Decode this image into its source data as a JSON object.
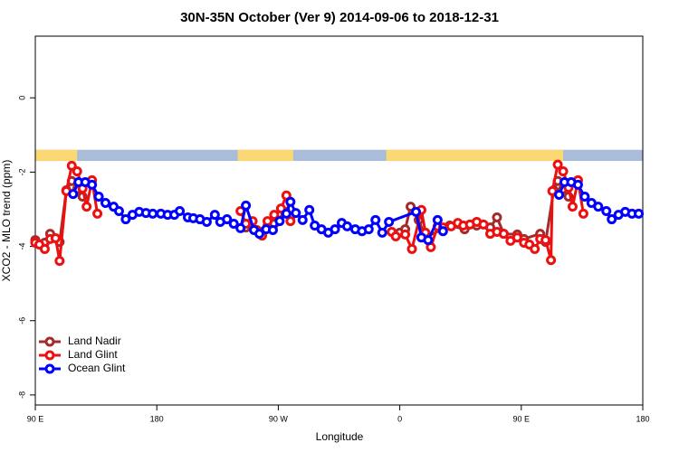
{
  "chart_data": {
    "type": "line",
    "title": "30N-35N October (Ver 9)   2014-09-06 to 2018-12-31",
    "x_label": "Longitude",
    "y_label": "XCO2 - MLO trend (ppm)",
    "xlim": [
      90,
      540
    ],
    "ylim": [
      -8.27,
      1.66
    ],
    "xticks": [
      {
        "value": 90,
        "label": "90 E"
      },
      180,
      {
        "value": 270,
        "label": "90 W"
      },
      {
        "value": 360,
        "label": "0"
      },
      {
        "value": 450,
        "label": "90 E"
      },
      {
        "value": 540,
        "label": "180"
      }
    ],
    "yticks": [
      0,
      -2,
      -4,
      -6,
      -8
    ],
    "grid": false,
    "legend": "bottomleft",
    "land_band": {
      "ylim": [
        -1.7,
        -1.4
      ],
      "ocean_color": "#a9bcd9",
      "land_color": "#fbd874",
      "land": [
        [
          90,
          121
        ],
        [
          240,
          281
        ],
        [
          350,
          481
        ]
      ]
    },
    "series": [
      {
        "name": "Land Nadir",
        "color": "#a52a2a",
        "x": [
          90,
          97,
          101,
          108,
          113,
          117,
          121,
          125,
          200,
          246,
          254,
          262,
          267,
          275,
          279,
          320,
          360,
          364,
          368,
          374,
          379,
          397,
          408,
          417,
          427,
          432,
          437,
          447,
          452,
          464,
          468,
          474,
          477,
          481,
          485
        ],
        "values": [
          -3.83,
          -3.9,
          -3.66,
          -3.88,
          -2.49,
          -2.24,
          -2.46,
          -2.66,
          null,
          -3.49,
          -3.56,
          -3.46,
          -3.39,
          -3.07,
          -3.2,
          null,
          -3.63,
          -3.54,
          -2.93,
          -3.29,
          -3.76,
          -3.44,
          -3.54,
          -3.44,
          -3.49,
          -3.22,
          -3.66,
          -3.68,
          -3.8,
          -3.66,
          -3.88,
          -2.49,
          -2.24,
          -2.46,
          -2.66
        ]
      },
      {
        "name": "Land Glint",
        "color": "#ee1010",
        "x": [
          90,
          93,
          97,
          101,
          105,
          108,
          113,
          117,
          121,
          125,
          128,
          132,
          136,
          200,
          242,
          246,
          251,
          254,
          258,
          262,
          267,
          272,
          276,
          279,
          320,
          354,
          357,
          364,
          369,
          376,
          379,
          383,
          388,
          392,
          398,
          403,
          407,
          412,
          417,
          422,
          427,
          432,
          437,
          442,
          447,
          452,
          456,
          460,
          464,
          468,
          472,
          473,
          477,
          481,
          485,
          488,
          492,
          496
        ],
        "values": [
          -3.9,
          -3.95,
          -4.07,
          -3.8,
          -3.78,
          -4.39,
          -2.51,
          -1.83,
          -1.98,
          -2.44,
          -2.93,
          -2.22,
          -3.12,
          null,
          -3.05,
          -3.39,
          -3.32,
          -3.56,
          -3.71,
          -3.32,
          -3.15,
          -2.98,
          -2.63,
          -3.32,
          null,
          -3.61,
          -3.73,
          -3.68,
          -4.07,
          -3.02,
          -3.63,
          -4.02,
          -3.46,
          -3.49,
          -3.46,
          -3.37,
          -3.44,
          -3.41,
          -3.34,
          -3.41,
          -3.66,
          -3.61,
          -3.66,
          -3.85,
          -3.76,
          -3.9,
          -3.95,
          -4.07,
          -3.8,
          -3.83,
          -4.37,
          -2.51,
          -1.8,
          -1.98,
          -2.42,
          -2.93,
          -2.22,
          -3.12
        ]
      },
      {
        "name": "Ocean Glint",
        "color": "#0000ff",
        "x": [
          118,
          122,
          127,
          132,
          137,
          142,
          148,
          152,
          157,
          162,
          167,
          172,
          177,
          183,
          188,
          193,
          197,
          203,
          207,
          212,
          217,
          223,
          227,
          232,
          237,
          242,
          246,
          252,
          256,
          261,
          266,
          271,
          276,
          279,
          283,
          288,
          293,
          297,
          302,
          307,
          312,
          317,
          321,
          327,
          332,
          337,
          342,
          347,
          352,
          372,
          376,
          381,
          388,
          392,
          430,
          478,
          482,
          487,
          492,
          497,
          502,
          507,
          513,
          517,
          522,
          527,
          532,
          537
        ],
        "values": [
          -2.59,
          -2.27,
          -2.27,
          -2.34,
          -2.66,
          -2.83,
          -2.93,
          -3.05,
          -3.27,
          -3.15,
          -3.07,
          -3.1,
          -3.12,
          -3.12,
          -3.15,
          -3.15,
          -3.05,
          -3.22,
          -3.24,
          -3.27,
          -3.34,
          -3.15,
          -3.34,
          -3.27,
          -3.39,
          -3.51,
          -2.9,
          -3.56,
          -3.66,
          -3.54,
          -3.56,
          -3.32,
          -3.12,
          -2.8,
          -3.1,
          -3.29,
          -3.02,
          -3.44,
          -3.54,
          -3.63,
          -3.54,
          -3.37,
          -3.46,
          -3.54,
          -3.59,
          -3.54,
          -3.29,
          -3.63,
          -3.34,
          -3.07,
          -3.76,
          -3.83,
          -3.29,
          -3.59,
          null,
          -2.61,
          -2.27,
          -2.27,
          -2.34,
          -2.66,
          -2.83,
          -2.93,
          -3.05,
          -3.27,
          -3.15,
          -3.07,
          -3.12,
          -3.12
        ]
      }
    ]
  }
}
